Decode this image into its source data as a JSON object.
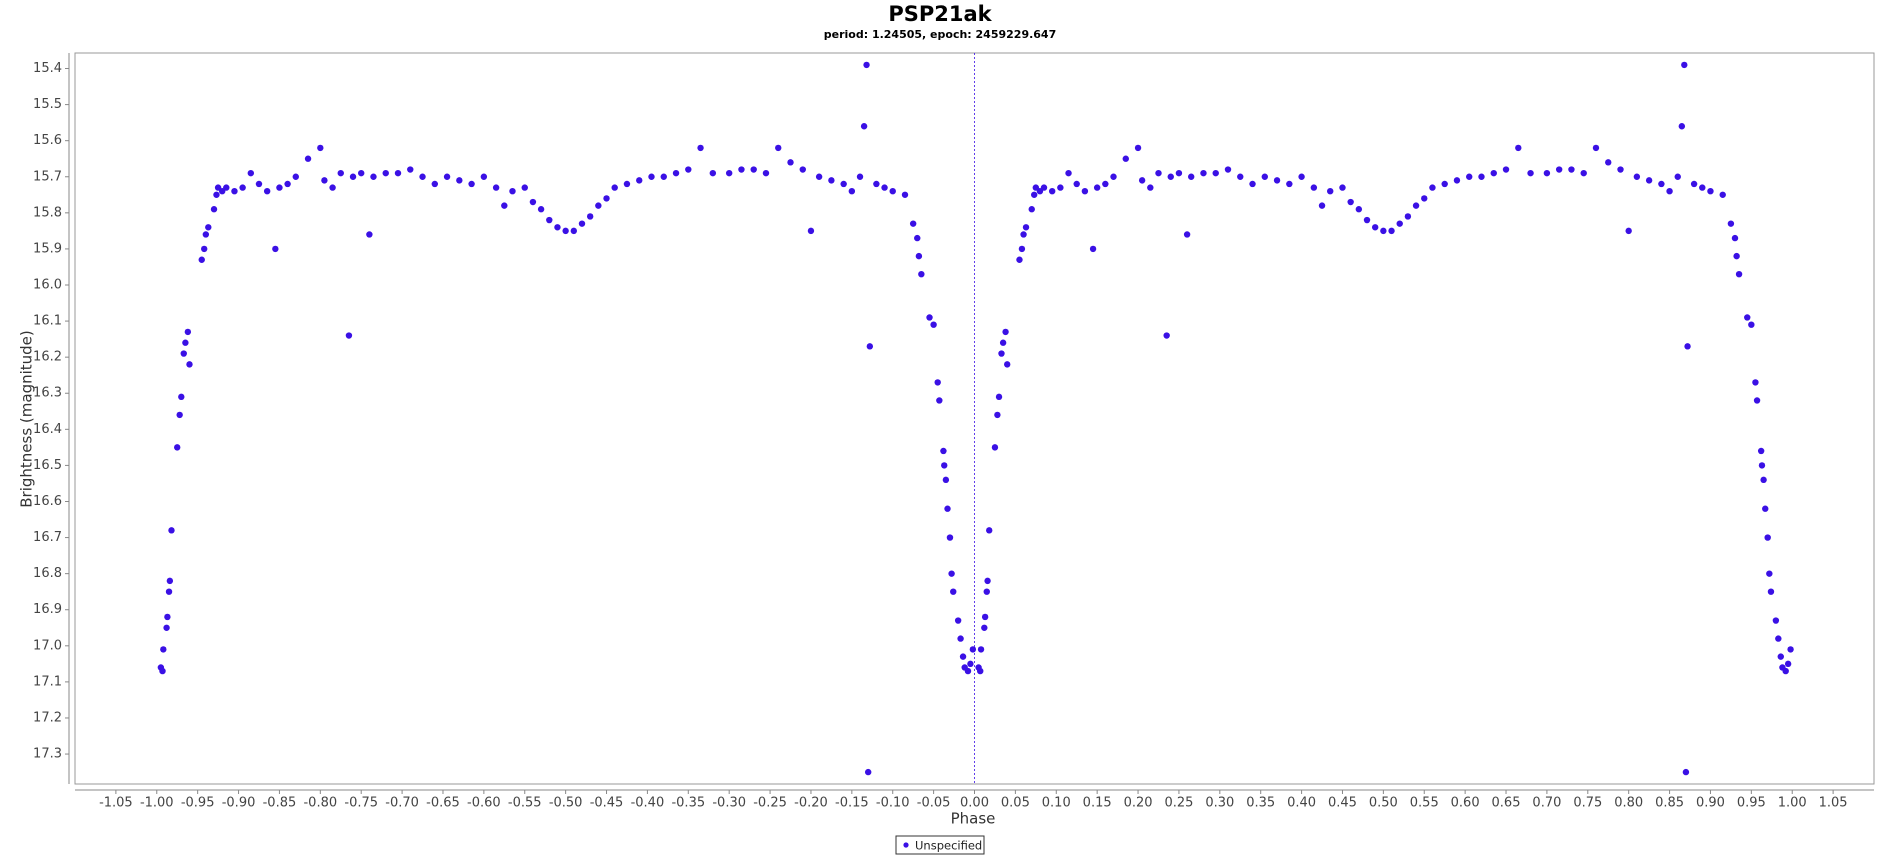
{
  "chart_data": {
    "type": "scatter",
    "title": "PSP21ak",
    "subtitle": "period: 1.24505, epoch: 2459229.647",
    "x_label": "Phase",
    "y_label": "Brightness (magnitude)",
    "xlim": [
      -1.1,
      1.1
    ],
    "ylim": [
      15.357,
      17.383
    ],
    "invert_y": true,
    "reference_line_x": 0,
    "legend": "bottom",
    "xticks": [
      -1.05,
      {
        "value": -1,
        "label": "-1.00"
      },
      -0.95,
      {
        "value": -0.9,
        "label": "-0.90"
      },
      -0.85,
      {
        "value": -0.8,
        "label": "-0.80"
      },
      -0.75,
      {
        "value": -0.7,
        "label": "-0.70"
      },
      -0.65,
      {
        "value": -0.6,
        "label": "-0.60"
      },
      -0.55,
      {
        "value": -0.5,
        "label": "-0.50"
      },
      -0.45,
      {
        "value": -0.4,
        "label": "-0.40"
      },
      -0.35,
      {
        "value": -0.3,
        "label": "-0.30"
      },
      -0.25,
      {
        "value": -0.2,
        "label": "-0.20"
      },
      -0.15,
      {
        "value": -0.1,
        "label": "-0.10"
      },
      -0.05,
      {
        "value": 0,
        "label": "0.00"
      },
      0.05,
      {
        "value": 0.1,
        "label": "0.10"
      },
      0.15,
      {
        "value": 0.2,
        "label": "0.20"
      },
      0.25,
      {
        "value": 0.3,
        "label": "0.30"
      },
      0.35,
      {
        "value": 0.4,
        "label": "0.40"
      },
      0.45,
      {
        "value": 0.5,
        "label": "0.50"
      },
      0.55,
      {
        "value": 0.6,
        "label": "0.60"
      },
      0.65,
      {
        "value": 0.7,
        "label": "0.70"
      },
      0.75,
      {
        "value": 0.8,
        "label": "0.80"
      },
      0.85,
      {
        "value": 0.9,
        "label": "0.90"
      },
      0.95,
      {
        "value": 1,
        "label": "1.00"
      },
      1.05
    ],
    "yticks": [
      15.4,
      15.5,
      15.6,
      15.7,
      15.8,
      15.9,
      {
        "value": 16,
        "label": "16.0"
      },
      16.1,
      16.2,
      16.3,
      16.4,
      16.5,
      16.6,
      16.7,
      16.8,
      16.9,
      {
        "value": 17,
        "label": "17.0"
      },
      17.1,
      17.2,
      17.3
    ],
    "series": [
      {
        "name": "Unspecified",
        "color": "#3a10e5",
        "x": [
          -0.995,
          -0.993,
          -0.992,
          -0.988,
          -0.987,
          -0.985,
          -0.984,
          -0.982,
          -0.975,
          -0.972,
          -0.97,
          -0.967,
          -0.965,
          -0.962,
          -0.96,
          -0.945,
          -0.942,
          -0.94,
          -0.937,
          -0.93,
          -0.927,
          -0.925,
          -0.92,
          -0.915,
          -0.905,
          -0.895,
          -0.885,
          -0.875,
          -0.865,
          -0.855,
          -0.85,
          -0.84,
          -0.83,
          -0.815,
          -0.8,
          -0.795,
          -0.785,
          -0.775,
          -0.765,
          -0.76,
          -0.75,
          -0.74,
          -0.735,
          -0.72,
          -0.705,
          -0.69,
          -0.675,
          -0.66,
          -0.645,
          -0.63,
          -0.615,
          -0.6,
          -0.585,
          -0.575,
          -0.565,
          -0.55,
          -0.54,
          -0.53,
          -0.52,
          -0.51,
          -0.5,
          -0.49,
          -0.48,
          -0.47,
          -0.46,
          -0.45,
          -0.44,
          -0.425,
          -0.41,
          -0.395,
          -0.38,
          -0.365,
          -0.35,
          -0.335,
          -0.32,
          -0.3,
          -0.285,
          -0.27,
          -0.255,
          -0.24,
          -0.225,
          -0.21,
          -0.2,
          -0.19,
          -0.175,
          -0.16,
          -0.15,
          -0.14,
          -0.135,
          -0.132,
          -0.13,
          -0.128,
          -0.12,
          -0.11,
          -0.1,
          -0.085,
          -0.075,
          -0.07,
          -0.068,
          -0.065,
          -0.055,
          -0.05,
          -0.045,
          -0.043,
          -0.038,
          -0.037,
          -0.035,
          -0.033,
          -0.03,
          -0.028,
          -0.026,
          -0.02,
          -0.017,
          -0.014,
          -0.012,
          -0.008,
          -0.005,
          -0.002,
          0.005,
          0.007,
          0.008,
          0.012,
          0.013,
          0.015,
          0.016,
          0.018,
          0.025,
          0.028,
          0.03,
          0.033,
          0.035,
          0.038,
          0.04,
          0.055,
          0.058,
          0.06,
          0.063,
          0.07,
          0.073,
          0.075,
          0.08,
          0.085,
          0.095,
          0.105,
          0.115,
          0.125,
          0.135,
          0.145,
          0.15,
          0.16,
          0.17,
          0.185,
          0.2,
          0.205,
          0.215,
          0.225,
          0.235,
          0.24,
          0.25,
          0.26,
          0.265,
          0.28,
          0.295,
          0.31,
          0.325,
          0.34,
          0.355,
          0.37,
          0.385,
          0.4,
          0.415,
          0.425,
          0.435,
          0.45,
          0.46,
          0.47,
          0.48,
          0.49,
          0.5,
          0.51,
          0.52,
          0.53,
          0.54,
          0.55,
          0.56,
          0.575,
          0.59,
          0.605,
          0.62,
          0.635,
          0.65,
          0.665,
          0.68,
          0.7,
          0.715,
          0.73,
          0.745,
          0.76,
          0.775,
          0.79,
          0.8,
          0.81,
          0.825,
          0.84,
          0.85,
          0.86,
          0.865,
          0.868,
          0.87,
          0.872,
          0.88,
          0.89,
          0.9,
          0.915,
          0.925,
          0.93,
          0.932,
          0.935,
          0.945,
          0.95,
          0.955,
          0.957,
          0.962,
          0.963,
          0.965,
          0.967,
          0.97,
          0.972,
          0.974,
          0.98,
          0.983,
          0.986,
          0.988,
          0.992,
          0.995,
          0.998
        ],
        "values": [
          17.06,
          17.07,
          17.01,
          16.95,
          16.92,
          16.85,
          16.82,
          16.68,
          16.45,
          16.36,
          16.31,
          16.19,
          16.16,
          16.13,
          16.22,
          15.93,
          15.9,
          15.86,
          15.84,
          15.79,
          15.75,
          15.73,
          15.74,
          15.73,
          15.74,
          15.73,
          15.69,
          15.72,
          15.74,
          15.9,
          15.73,
          15.72,
          15.7,
          15.65,
          15.62,
          15.71,
          15.73,
          15.69,
          16.14,
          15.7,
          15.69,
          15.86,
          15.7,
          15.69,
          15.69,
          15.68,
          15.7,
          15.72,
          15.7,
          15.71,
          15.72,
          15.7,
          15.73,
          15.78,
          15.74,
          15.73,
          15.77,
          15.79,
          15.82,
          15.84,
          15.85,
          15.85,
          15.83,
          15.81,
          15.78,
          15.76,
          15.73,
          15.72,
          15.71,
          15.7,
          15.7,
          15.69,
          15.68,
          15.62,
          15.69,
          15.69,
          15.68,
          15.68,
          15.69,
          15.62,
          15.66,
          15.68,
          15.85,
          15.7,
          15.71,
          15.72,
          15.74,
          15.7,
          15.56,
          15.39,
          17.35,
          16.17,
          15.72,
          15.73,
          15.74,
          15.75,
          15.83,
          15.87,
          15.92,
          15.97,
          16.09,
          16.11,
          16.27,
          16.32,
          16.46,
          16.5,
          16.54,
          16.62,
          16.7,
          16.8,
          16.85,
          16.93,
          16.98,
          17.03,
          17.06,
          17.07,
          17.05,
          17.01,
          17.06,
          17.07,
          17.01,
          16.95,
          16.92,
          16.85,
          16.82,
          16.68,
          16.45,
          16.36,
          16.31,
          16.19,
          16.16,
          16.13,
          16.22,
          15.93,
          15.9,
          15.86,
          15.84,
          15.79,
          15.75,
          15.73,
          15.74,
          15.73,
          15.74,
          15.73,
          15.69,
          15.72,
          15.74,
          15.9,
          15.73,
          15.72,
          15.7,
          15.65,
          15.62,
          15.71,
          15.73,
          15.69,
          16.14,
          15.7,
          15.69,
          15.86,
          15.7,
          15.69,
          15.69,
          15.68,
          15.7,
          15.72,
          15.7,
          15.71,
          15.72,
          15.7,
          15.73,
          15.78,
          15.74,
          15.73,
          15.77,
          15.79,
          15.82,
          15.84,
          15.85,
          15.85,
          15.83,
          15.81,
          15.78,
          15.76,
          15.73,
          15.72,
          15.71,
          15.7,
          15.7,
          15.69,
          15.68,
          15.62,
          15.69,
          15.69,
          15.68,
          15.68,
          15.69,
          15.62,
          15.66,
          15.68,
          15.85,
          15.7,
          15.71,
          15.72,
          15.74,
          15.7,
          15.56,
          15.39,
          17.35,
          16.17,
          15.72,
          15.73,
          15.74,
          15.75,
          15.83,
          15.87,
          15.92,
          15.97,
          16.09,
          16.11,
          16.27,
          16.32,
          16.46,
          16.5,
          16.54,
          16.62,
          16.7,
          16.8,
          16.85,
          16.93,
          16.98,
          17.03,
          17.06,
          17.07,
          17.05,
          17.01
        ]
      }
    ]
  }
}
